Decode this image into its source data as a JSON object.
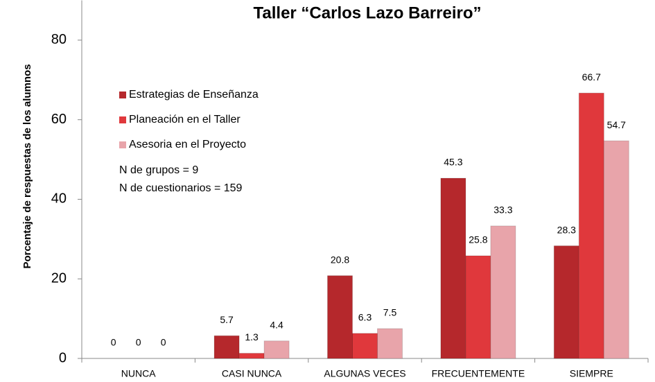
{
  "chart_data": {
    "type": "bar",
    "title": "Taller “Carlos Lazo Barreiro”",
    "y_label": "Porcentaje de respuestas de los alumnos",
    "categories": [
      "NUNCA",
      "CASI NUNCA",
      "ALGUNAS VECES",
      "FRECUENTEMENTE",
      "SIEMPRE"
    ],
    "series": [
      {
        "name": "Estrategias de Enseñanza",
        "color": "#b5282c",
        "values": [
          0,
          5.7,
          20.8,
          45.3,
          28.3
        ]
      },
      {
        "name": "Planeación en el Taller",
        "color": "#e0383c",
        "values": [
          0,
          1.3,
          6.3,
          25.8,
          66.7
        ]
      },
      {
        "name": "Asesoria en el Proyecto",
        "color": "#e8a4aa",
        "values": [
          0,
          4.4,
          7.5,
          33.3,
          54.7
        ]
      }
    ],
    "annotations": [
      "N de grupos = 9",
      "N de cuestionarios =  159"
    ],
    "ylim": [
      0,
      90
    ],
    "yticks": [
      0,
      20,
      40,
      60,
      80
    ],
    "grid": false,
    "legend": "upper left"
  }
}
